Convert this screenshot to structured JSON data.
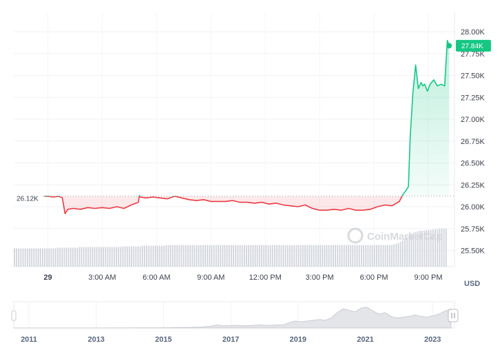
{
  "chart_data": {
    "type": "line",
    "watermark": "CoinMarketCap",
    "unit_label": "USD",
    "reference_label": "26.12K",
    "current_price_label": "27.84K",
    "ylim": [
      25.4,
      28.1
    ],
    "reference_value": 26.12,
    "yticks": [
      {
        "value": 28.0,
        "label": "28.00K"
      },
      {
        "value": 27.75,
        "label": "27.75K"
      },
      {
        "value": 27.5,
        "label": "27.50K"
      },
      {
        "value": 27.25,
        "label": "27.25K"
      },
      {
        "value": 27.0,
        "label": "27.00K"
      },
      {
        "value": 26.75,
        "label": "26.75K"
      },
      {
        "value": 26.5,
        "label": "26.50K"
      },
      {
        "value": 26.25,
        "label": "26.25K"
      },
      {
        "value": 26.0,
        "label": "26.00K"
      },
      {
        "value": 25.75,
        "label": "25.75K"
      },
      {
        "value": 25.5,
        "label": "25.50K"
      }
    ],
    "xticks": [
      {
        "value": 0,
        "label": "29"
      },
      {
        "value": 3,
        "label": "3:00 AM"
      },
      {
        "value": 6,
        "label": "6:00 AM"
      },
      {
        "value": 9,
        "label": "9:00 AM"
      },
      {
        "value": 12,
        "label": "12:00 PM"
      },
      {
        "value": 15,
        "label": "3:00 PM"
      },
      {
        "value": 18,
        "label": "6:00 PM"
      },
      {
        "value": 21,
        "label": "9:00 PM"
      }
    ],
    "xlim": [
      -1.9,
      22.4
    ],
    "series": [
      {
        "x": [
          -0.2,
          0.0,
          0.3,
          0.6,
          0.8,
          0.95,
          1.1,
          1.4,
          1.8,
          2.2,
          2.6,
          3.0,
          3.4,
          3.8,
          4.2,
          4.6,
          5.0,
          5.05,
          5.1,
          5.4,
          5.8,
          6.2,
          6.6,
          7.0,
          7.4,
          7.8,
          8.2,
          8.6,
          9.0,
          9.4,
          9.8,
          10.2,
          10.6,
          11.0,
          11.4,
          11.8,
          12.2,
          12.6,
          13.0,
          13.4,
          13.8,
          14.2,
          14.6,
          15.0,
          15.4,
          15.8,
          16.2,
          16.6,
          17.0,
          17.4,
          17.8,
          18.2,
          18.6,
          19.0,
          19.4,
          19.6,
          19.75,
          19.9,
          20.0,
          20.15,
          20.3,
          20.45,
          20.6,
          20.7,
          20.8,
          20.95,
          21.1,
          21.3,
          21.5,
          21.7,
          21.9,
          22.05,
          22.15
        ],
        "values": [
          26.12,
          26.12,
          26.11,
          26.12,
          26.1,
          25.92,
          25.97,
          25.98,
          25.97,
          25.99,
          25.98,
          25.99,
          25.98,
          26.0,
          25.98,
          26.02,
          26.05,
          26.13,
          26.11,
          26.1,
          26.11,
          26.1,
          26.09,
          26.12,
          26.1,
          26.08,
          26.07,
          26.08,
          26.06,
          26.06,
          26.06,
          26.07,
          26.05,
          26.05,
          26.04,
          26.05,
          26.03,
          26.04,
          26.02,
          26.01,
          26.0,
          26.02,
          25.98,
          25.96,
          25.96,
          25.97,
          25.96,
          25.98,
          25.96,
          25.96,
          25.97,
          26.0,
          26.02,
          26.01,
          26.06,
          26.14,
          26.18,
          26.23,
          26.8,
          27.3,
          27.62,
          27.35,
          27.42,
          27.38,
          27.4,
          27.32,
          27.4,
          27.45,
          27.38,
          27.4,
          27.38,
          27.9,
          27.84
        ]
      }
    ],
    "volume": [
      28,
      28,
      28,
      28,
      28,
      28,
      28,
      28,
      28,
      28,
      28,
      28,
      28,
      28,
      28,
      28,
      28,
      28,
      28,
      28,
      29,
      29,
      29,
      29,
      29,
      29,
      29,
      29,
      29,
      29,
      30,
      30,
      30,
      30,
      30,
      30,
      30,
      30,
      30,
      30,
      30,
      30,
      30,
      30,
      30,
      30,
      30,
      30,
      30,
      30,
      31,
      31,
      31,
      31,
      31,
      31,
      31,
      31,
      31,
      32,
      32,
      32,
      32,
      32,
      32,
      32,
      32,
      32,
      32,
      32,
      33,
      33,
      33,
      33,
      33,
      33,
      33,
      33,
      33,
      33,
      33,
      33,
      33,
      33,
      33,
      33,
      33,
      33,
      33,
      33,
      33,
      33,
      33,
      33,
      33,
      33,
      33,
      33,
      33,
      33,
      33,
      33,
      33,
      33,
      33,
      33,
      33,
      33,
      33,
      33,
      33,
      33,
      33,
      33,
      33,
      33,
      33,
      33,
      33,
      33,
      33,
      33,
      33,
      33,
      33,
      33,
      33,
      33,
      33,
      33,
      33,
      33,
      33,
      33,
      33,
      33,
      33,
      33,
      33,
      33,
      33,
      33,
      33,
      33,
      33,
      33,
      33,
      33,
      33,
      33,
      33,
      33,
      33,
      33,
      33,
      33,
      33,
      33,
      33,
      33,
      33,
      33,
      33,
      33,
      33,
      33,
      33,
      33,
      33,
      33,
      33,
      33,
      33,
      33,
      33,
      34,
      35,
      36,
      38,
      40,
      42,
      45,
      48,
      50,
      52,
      53,
      54,
      55,
      55,
      55,
      56,
      56,
      56,
      57,
      57,
      57,
      58,
      58,
      58,
      58
    ],
    "navigator": {
      "xticks": [
        "2011",
        "2013",
        "2015",
        "2017",
        "2019",
        "2021",
        "2023"
      ],
      "values": [
        0,
        0,
        0,
        0,
        0,
        0,
        0,
        0,
        0,
        0,
        0,
        0,
        0,
        0,
        0,
        0,
        0.1,
        0.1,
        0.1,
        0.1,
        0.2,
        0.2,
        0.3,
        0.3,
        0.3,
        0.4,
        0.4,
        0.5,
        0.5,
        0.6,
        0.8,
        1.0,
        1.5,
        2.5,
        4,
        3,
        3,
        3.5,
        3,
        3,
        3.5,
        4,
        3.5,
        3.5,
        4,
        4,
        7,
        9,
        8,
        9,
        10,
        11,
        10,
        13,
        20,
        25,
        23,
        21,
        26,
        27,
        22,
        18,
        20,
        15,
        13,
        14,
        15,
        17,
        15,
        14,
        16,
        18,
        22,
        25
      ]
    }
  }
}
